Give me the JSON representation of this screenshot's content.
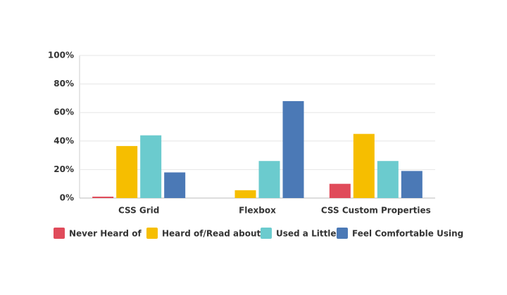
{
  "chart_data": {
    "type": "bar",
    "categories": [
      "CSS Grid",
      "Flexbox",
      "CSS Custom Properties"
    ],
    "series": [
      {
        "name": "Never Heard of",
        "color": "#e04b5a",
        "values": [
          1,
          0,
          10
        ]
      },
      {
        "name": "Heard of/Read about",
        "color": "#f6be00",
        "values": [
          36.5,
          5.5,
          45
        ]
      },
      {
        "name": "Used a Little",
        "color": "#6bcbce",
        "values": [
          44,
          26,
          26
        ]
      },
      {
        "name": "Feel Comfortable Using",
        "color": "#4b79b6",
        "values": [
          18,
          68,
          19
        ]
      }
    ],
    "ylim": [
      0,
      100
    ],
    "yticks": [
      {
        "value": 0,
        "label": "0%"
      },
      {
        "value": 20,
        "label": "20%"
      },
      {
        "value": 40,
        "label": "40%"
      },
      {
        "value": 60,
        "label": "60%"
      },
      {
        "value": 80,
        "label": "80%"
      },
      {
        "value": 100,
        "label": "100%"
      }
    ],
    "grid": true,
    "legend": "bottom"
  }
}
